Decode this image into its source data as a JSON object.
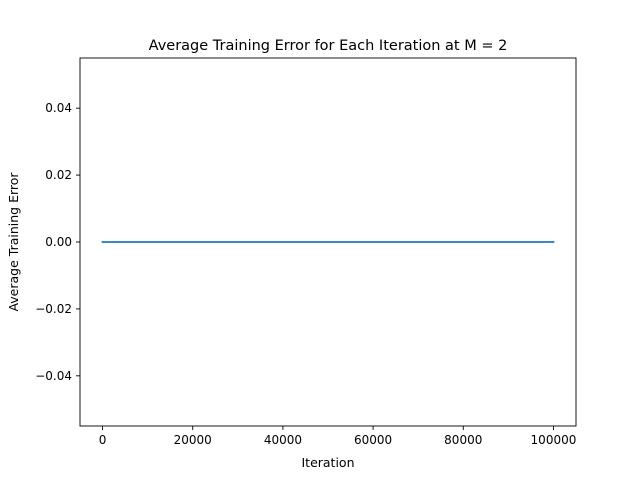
{
  "chart_data": {
    "type": "line",
    "title": "Average Training Error for Each Iteration at M = 2",
    "xlabel": "Iteration",
    "ylabel": "Average Training Error",
    "xlim": [
      -5000,
      105000
    ],
    "ylim": [
      -0.055,
      0.055
    ],
    "xticks": [
      0,
      20000,
      40000,
      60000,
      80000,
      100000
    ],
    "xtick_labels": [
      "0",
      "20000",
      "40000",
      "60000",
      "80000",
      "100000"
    ],
    "yticks": [
      -0.04,
      -0.02,
      0.0,
      0.02,
      0.04
    ],
    "ytick_labels": [
      "−0.04",
      "−0.02",
      "0.00",
      "0.02",
      "0.04"
    ],
    "grid": false,
    "series": [
      {
        "color": "#1f77b4",
        "x": [
          0,
          100000
        ],
        "y": [
          0.0,
          0.0
        ]
      }
    ]
  }
}
